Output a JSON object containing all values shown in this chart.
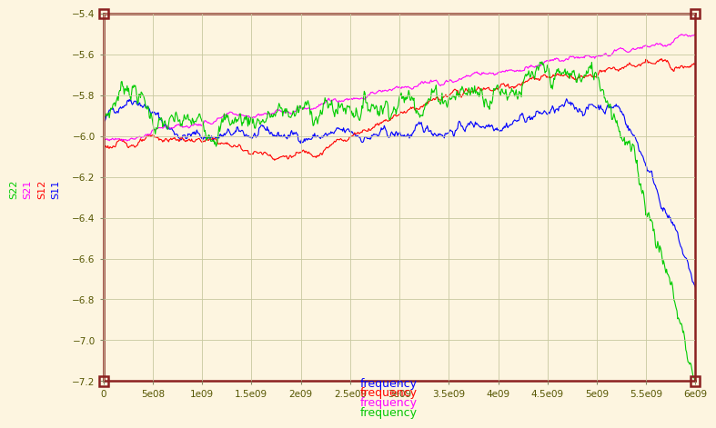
{
  "background_color": "#fdf5e0",
  "plot_background_color": "#fdf5e0",
  "grid_color": "#c8c8a0",
  "border_color": "#8b2020",
  "xlim": [
    0,
    6000000000.0
  ],
  "ylim": [
    -7.2,
    -5.4
  ],
  "xticks": [
    0,
    500000000.0,
    1000000000.0,
    1500000000.0,
    2000000000.0,
    2500000000.0,
    3000000000.0,
    3500000000.0,
    4000000000.0,
    4500000000.0,
    5000000000.0,
    5500000000.0,
    6000000000.0
  ],
  "yticks": [
    -7.2,
    -7.0,
    -6.8,
    -6.6,
    -6.4,
    -6.2,
    -6.0,
    -5.8,
    -5.6,
    -5.4
  ],
  "xlabel_labels": [
    "frequency",
    "frequency",
    "frequency",
    "frequency"
  ],
  "xlabel_colors": [
    "#0000ff",
    "#ff0000",
    "#ff00ff",
    "#00cc00"
  ],
  "ylabel_labels": [
    "S22",
    "S21",
    "S12",
    "S11"
  ],
  "ylabel_colors": [
    "#00cc00",
    "#ff00ff",
    "#ff0000",
    "#0000ff"
  ],
  "line_colors": [
    "#0000ff",
    "#ff0000",
    "#ff00ff",
    "#00cc00"
  ],
  "line_names": [
    "S11",
    "S12",
    "S21",
    "S22"
  ],
  "corner_marker_color": "#8b2020"
}
